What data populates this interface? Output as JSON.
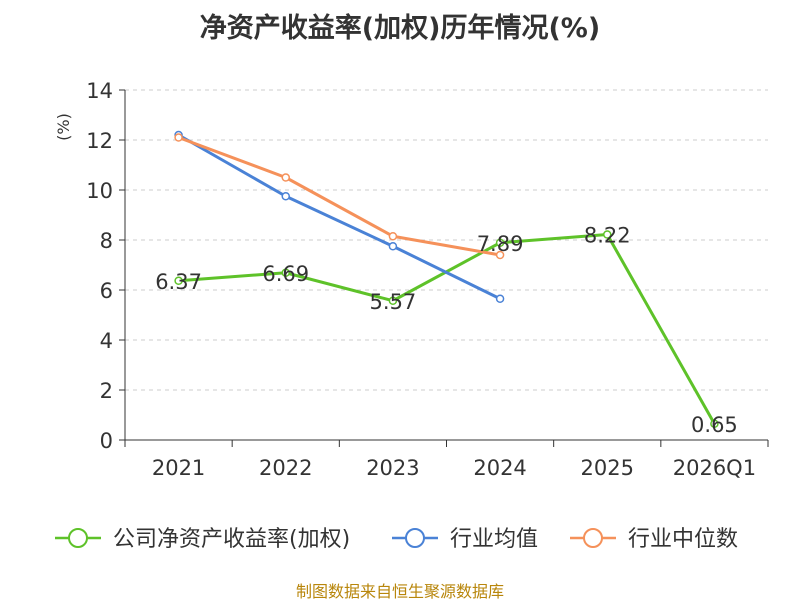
{
  "chart_data": {
    "type": "line",
    "title": "净资产收益率(加权)历年情况(%)",
    "ylabel": "(%)",
    "xlabel": "",
    "ylim": [
      0,
      14
    ],
    "yticks": [
      0,
      2,
      4,
      6,
      8,
      10,
      12,
      14
    ],
    "categories": [
      "2021",
      "2022",
      "2023",
      "2024",
      "2025",
      "2026Q1"
    ],
    "grid": true,
    "legend_position": "bottom",
    "series": [
      {
        "name": "公司净资产收益率(加权)",
        "color": "#5ec229",
        "values": [
          6.37,
          6.69,
          5.57,
          7.89,
          8.22,
          0.65
        ],
        "labels": [
          "6.37",
          "6.69",
          "5.57",
          "7.89",
          "8.22",
          "0.65"
        ]
      },
      {
        "name": "行业均值",
        "color": "#4a82d6",
        "values": [
          12.2,
          9.75,
          7.75,
          5.65,
          null,
          null
        ]
      },
      {
        "name": "行业中位数",
        "color": "#f5915a",
        "values": [
          12.1,
          10.5,
          8.15,
          7.4,
          null,
          null
        ]
      }
    ]
  },
  "source": "制图数据来自恒生聚源数据库"
}
